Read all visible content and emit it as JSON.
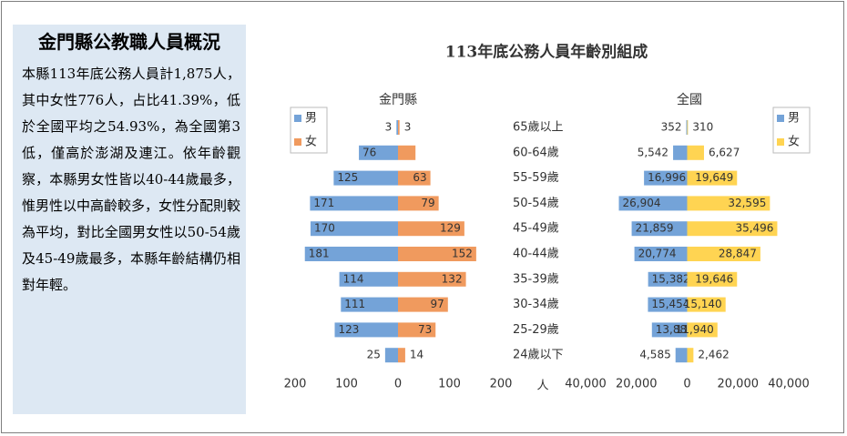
{
  "panel": {
    "title": "金門縣公教職人員概況",
    "text": "本縣113年底公務人員計1,875人，其中女性776人，占比41.39%，低於全國平均之54.93%，為全國第3低，僅高於澎湖及連江。依年齡觀察，本縣男女性皆以40-44歲最多，惟男性以中高齡較多，女性分配則較為平均，對比全國男女性以50-54歲及45-49歲最多，本縣年齡結構仍相對年輕。"
  },
  "chart_data": {
    "type": "pyramid",
    "title": "113年底公務人員年齡別組成",
    "x_label": "人",
    "categories": [
      "65歲以上",
      "60-64歲",
      "55-59歲",
      "50-54歲",
      "45-49歲",
      "40-44歲",
      "35-39歲",
      "30-34歲",
      "25-29歲",
      "24歲以下"
    ],
    "panels": [
      {
        "title": "金門縣",
        "legend": "left",
        "xlim": [
          -200,
          200
        ],
        "xticks": [
          {
            "value": -200,
            "label": "200"
          },
          {
            "value": -100,
            "label": "100"
          },
          0,
          100,
          200
        ],
        "series": [
          {
            "name": "男",
            "color": "#74a3d8",
            "values": [
              3,
              76,
              125,
              171,
              170,
              181,
              114,
              111,
              123,
              25
            ]
          },
          {
            "name": "女",
            "color": "#f09a5e",
            "values": [
              3,
              34,
              63,
              79,
              129,
              152,
              132,
              97,
              73,
              14
            ],
            "value_labels": [
              "3",
              null,
              "63",
              "79",
              "129",
              "152",
              "132",
              "97",
              "73",
              "14"
            ]
          }
        ]
      },
      {
        "title": "全國",
        "legend": "right",
        "xlim": [
          -40000,
          40000
        ],
        "xticks": [
          {
            "value": -40000,
            "label": "40,000"
          },
          {
            "value": -20000,
            "label": "20,000"
          },
          0,
          {
            "value": 20000,
            "label": "20,000"
          },
          {
            "value": 40000,
            "label": "40,000"
          }
        ],
        "series": [
          {
            "name": "男",
            "color": "#74a3d8",
            "values": [
              352,
              5542,
              16996,
              26904,
              21859,
              20774,
              15382,
              15454,
              13886,
              4585
            ],
            "value_labels": [
              "352",
              "5,542",
              "16,996",
              "26,904",
              "21,859",
              "20,774",
              "15,382",
              "15,454",
              "13,886",
              "4,585"
            ]
          },
          {
            "name": "女",
            "color": "#ffd452",
            "values": [
              310,
              6627,
              19649,
              32595,
              35496,
              28847,
              19646,
              15140,
              11940,
              2462
            ],
            "value_labels": [
              "310",
              "6,627",
              "19,649",
              "32,595",
              "35,496",
              "28,847",
              "19,646",
              "15,140",
              "11,940",
              "2,462"
            ]
          }
        ]
      }
    ]
  }
}
